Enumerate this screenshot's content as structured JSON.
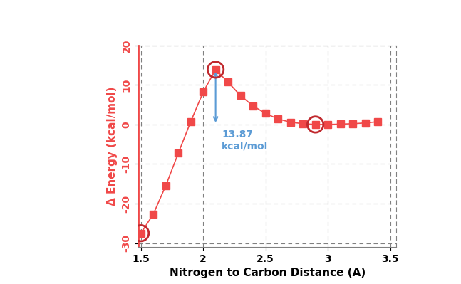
{
  "chart_data": {
    "type": "line",
    "x_label": "Nitrogen to Carbon Distance (A)",
    "y_label": "Δ Energy (kcal/mol)",
    "x": [
      1.5,
      1.6,
      1.7,
      1.8,
      1.9,
      2.0,
      2.1,
      2.2,
      2.3,
      2.4,
      2.5,
      2.6,
      2.7,
      2.8,
      2.9,
      3.0,
      3.1,
      3.2,
      3.3,
      3.4
    ],
    "values": [
      -27.5,
      -22.7,
      -15.5,
      -7.3,
      0.7,
      8.2,
      13.87,
      10.7,
      7.3,
      4.7,
      2.8,
      1.4,
      0.6,
      0.2,
      0.0,
      0.0,
      0.1,
      0.2,
      0.4,
      0.7
    ],
    "color": "#f04848",
    "marker": "square",
    "line_style": "solid",
    "grid": true,
    "xlim": [
      1.48,
      3.55
    ],
    "xticks": [
      1.5,
      2,
      2.5,
      3,
      3.5
    ],
    "ylim": [
      -31,
      20
    ],
    "yticks": [
      -30,
      -20,
      -10,
      0,
      10,
      20
    ],
    "highlight_x": [
      1.5,
      2.1,
      2.9
    ],
    "annotation": {
      "text": "13.87\nkcal/mol",
      "x": 2.1,
      "y_from": 0,
      "y_to": 13.87,
      "color": "#5b9bd5"
    }
  }
}
